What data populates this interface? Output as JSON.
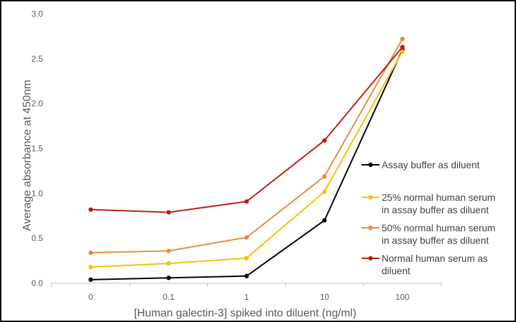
{
  "chart_data": {
    "type": "line",
    "categories": [
      "0",
      "0.1",
      "1",
      "10",
      "100"
    ],
    "xlabel": "[Human galectin-3] spiked into diluent (ng/ml)",
    "ylabel": "Average absorbance at 450nm",
    "ylim": [
      0.0,
      3.0
    ],
    "yticks": [
      "0.0",
      "0.5",
      "1.0",
      "1.5",
      "2.0",
      "2.5",
      "3.0"
    ],
    "grid": false,
    "legend_position": "right",
    "series": [
      {
        "name_lines": [
          "Assay buffer as diluent"
        ],
        "color": "#000000",
        "values": [
          0.04,
          0.06,
          0.08,
          0.7,
          2.6
        ]
      },
      {
        "name_lines": [
          "25% normal human serum",
          "in assay buffer as diluent"
        ],
        "color": "#F5C000",
        "values": [
          0.18,
          0.22,
          0.28,
          1.02,
          2.58
        ]
      },
      {
        "name_lines": [
          "50% normal human serum",
          "in assay buffer as diluent"
        ],
        "color": "#E98A3C",
        "values": [
          0.34,
          0.36,
          0.51,
          1.19,
          2.72
        ]
      },
      {
        "name_lines": [
          "Normal human serum as",
          "diluent"
        ],
        "color": "#B81E14",
        "values": [
          0.82,
          0.79,
          0.91,
          1.59,
          2.63
        ]
      }
    ]
  }
}
